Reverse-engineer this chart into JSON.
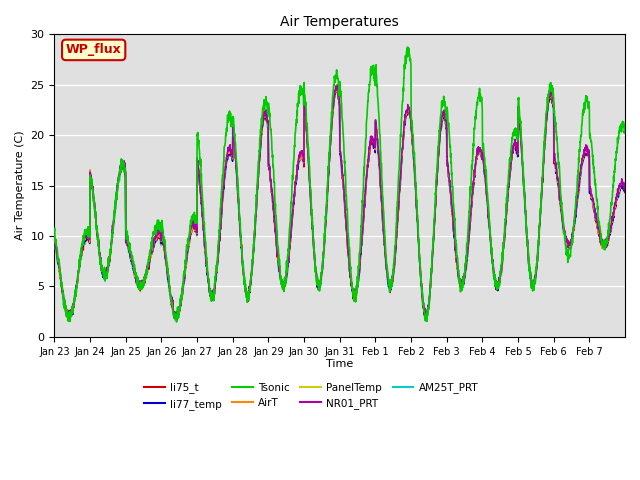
{
  "title": "Air Temperatures",
  "ylabel": "Air Temperature (C)",
  "xlabel": "Time",
  "ylim": [
    0,
    30
  ],
  "plot_bg_color": "#e0e0e0",
  "series": {
    "li75_t": {
      "color": "#cc0000",
      "lw": 1.0,
      "zorder": 4
    },
    "li77_temp": {
      "color": "#0000cc",
      "lw": 1.0,
      "zorder": 4
    },
    "Tsonic": {
      "color": "#00cc00",
      "lw": 1.2,
      "zorder": 5
    },
    "AirT": {
      "color": "#ff8800",
      "lw": 1.0,
      "zorder": 4
    },
    "PanelTemp": {
      "color": "#cccc00",
      "lw": 1.0,
      "zorder": 3
    },
    "NR01_PRT": {
      "color": "#aa00aa",
      "lw": 1.0,
      "zorder": 4
    },
    "AM25T_PRT": {
      "color": "#00cccc",
      "lw": 1.3,
      "zorder": 3
    }
  },
  "legend_label": "WP_flux",
  "legend_bg": "#ffffcc",
  "legend_edge": "#cc0000",
  "tick_labels": [
    "Jan 23",
    "Jan 24",
    "Jan 25",
    "Jan 26",
    "Jan 27",
    "Jan 28",
    "Jan 29",
    "Jan 30",
    "Jan 31",
    "Feb 1",
    "Feb 2",
    "Feb 3",
    "Feb 4",
    "Feb 5",
    "Feb 6",
    "Feb 7"
  ],
  "n_days": 16,
  "daily_highs_base": [
    10,
    17,
    10,
    11,
    18.5,
    22,
    18,
    24.5,
    19.5,
    22.5,
    22,
    18.5,
    19,
    24,
    18.5,
    15
  ],
  "daily_lows_base": [
    2,
    6,
    5,
    2,
    4,
    4,
    5,
    5,
    4,
    5,
    2,
    5,
    5,
    5,
    9,
    9
  ],
  "daily_highs_tsonic": [
    10.5,
    17,
    11,
    12,
    22,
    23.5,
    24.5,
    26,
    26.5,
    28.5,
    23.5,
    24,
    20.5,
    25,
    23.5,
    21
  ],
  "daily_lows_tsonic": [
    2,
    6,
    5,
    2,
    4,
    4,
    5,
    5,
    4,
    5,
    2,
    5,
    5,
    5,
    8,
    9
  ]
}
